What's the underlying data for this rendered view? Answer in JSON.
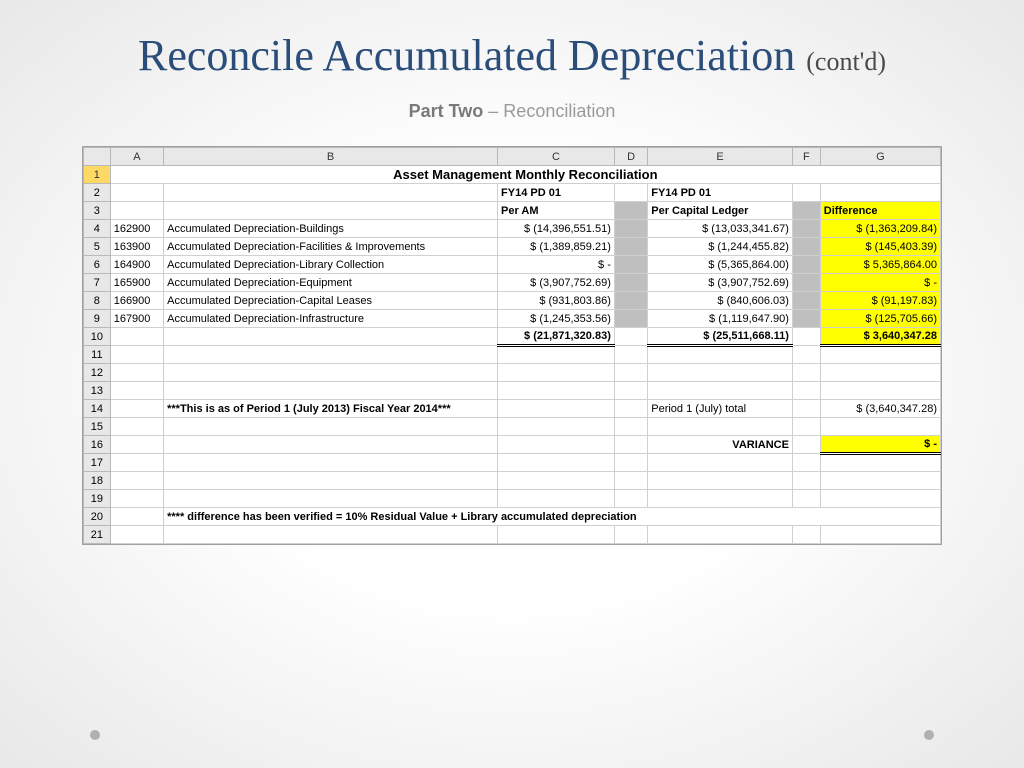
{
  "title": {
    "main": "Reconcile Accumulated Depreciation",
    "contd": "(cont'd)"
  },
  "subtitle": {
    "bold": "Part Two",
    "rest": " – Reconciliation"
  },
  "sheet": {
    "colHeaders": [
      "A",
      "B",
      "C",
      "D",
      "E",
      "F",
      "G"
    ],
    "reportTitle": "Asset Management Monthly Reconciliation",
    "hdr1": {
      "c": "FY14 PD 01",
      "e": "FY14 PD 01"
    },
    "hdr2": {
      "c": "Per AM",
      "e": "Per Capital Ledger",
      "g": "Difference"
    },
    "rows": [
      {
        "a": "162900",
        "b": "Accumulated Depreciation-Buildings",
        "c": "$ (14,396,551.51)",
        "e": "$    (13,033,341.67)",
        "g": "$ (1,363,209.84)"
      },
      {
        "a": "163900",
        "b": "Accumulated Depreciation-Facilities & Improvements",
        "c": "$  (1,389,859.21)",
        "e": "$     (1,244,455.82)",
        "g": "$    (145,403.39)"
      },
      {
        "a": "164900",
        "b": "Accumulated Depreciation-Library Collection",
        "c": "$              -",
        "e": "$     (5,365,864.00)",
        "g": "$  5,365,864.00"
      },
      {
        "a": "165900",
        "b": "Accumulated Depreciation-Equipment",
        "c": "$  (3,907,752.69)",
        "e": "$     (3,907,752.69)",
        "g": "$              -"
      },
      {
        "a": "166900",
        "b": "Accumulated Depreciation-Capital Leases",
        "c": "$     (931,803.86)",
        "e": "$        (840,606.03)",
        "g": "$      (91,197.83)"
      },
      {
        "a": "167900",
        "b": "Accumulated Depreciation-Infrastructure",
        "c": "$  (1,245,353.56)",
        "e": "$     (1,119,647.90)",
        "g": "$    (125,705.66)"
      }
    ],
    "totals": {
      "c": "$ (21,871,320.83)",
      "e": "$    (25,511,668.11)",
      "g": "$  3,640,347.28"
    },
    "note14b": "***This is as of Period 1 (July 2013) Fiscal Year 2014***",
    "note14e": "Period 1 (July) total",
    "note14g": "$ (3,640,347.28)",
    "varianceLabel": "VARIANCE",
    "varianceVal": "$              -",
    "footnote": "**** difference has been verified = 10% Residual Value + Library accumulated depreciation"
  }
}
